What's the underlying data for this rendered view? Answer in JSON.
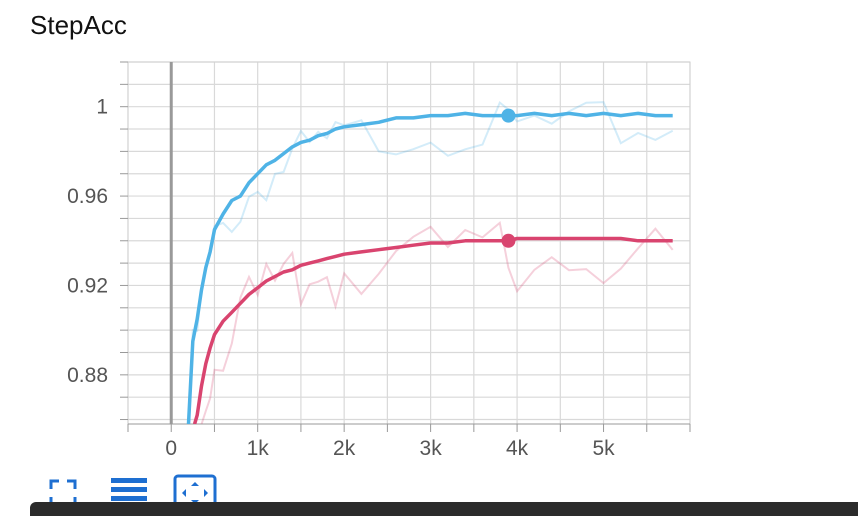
{
  "title": "StepAcc",
  "chart_data": {
    "type": "line",
    "title": "StepAcc",
    "xlabel": "",
    "ylabel": "",
    "xlim": [
      -500,
      6000
    ],
    "ylim": [
      0.858,
      1.02
    ],
    "x_ticks": [
      0,
      1000,
      2000,
      3000,
      4000,
      5000
    ],
    "x_tick_labels": [
      "0",
      "1k",
      "2k",
      "3k",
      "4k",
      "5k"
    ],
    "y_ticks": [
      0.88,
      0.92,
      0.96,
      1.0
    ],
    "y_tick_labels": [
      "0.88",
      "0.92",
      "0.96",
      "1"
    ],
    "grid": true,
    "series": [
      {
        "color": "#4fb3e6",
        "x": [
          200,
          250,
          300,
          350,
          400,
          450,
          500,
          600,
          700,
          800,
          900,
          1000,
          1100,
          1200,
          1300,
          1400,
          1500,
          1600,
          1700,
          1800,
          1900,
          2000,
          2200,
          2400,
          2600,
          2800,
          3000,
          3200,
          3400,
          3600,
          3800,
          3900,
          4000,
          4200,
          4400,
          4600,
          4800,
          5000,
          5200,
          5400,
          5600,
          5800
        ],
        "values": [
          0.858,
          0.895,
          0.905,
          0.918,
          0.928,
          0.935,
          0.945,
          0.952,
          0.958,
          0.96,
          0.966,
          0.97,
          0.974,
          0.976,
          0.979,
          0.982,
          0.984,
          0.985,
          0.987,
          0.988,
          0.99,
          0.991,
          0.992,
          0.993,
          0.995,
          0.995,
          0.996,
          0.996,
          0.997,
          0.996,
          0.996,
          0.996,
          0.996,
          0.997,
          0.996,
          0.997,
          0.996,
          0.997,
          0.996,
          0.997,
          0.996,
          0.996
        ]
      },
      {
        "color": "#d9446f",
        "x": [
          270,
          300,
          350,
          400,
          450,
          500,
          600,
          700,
          800,
          900,
          1000,
          1100,
          1200,
          1300,
          1400,
          1500,
          1600,
          1700,
          1800,
          1900,
          2000,
          2200,
          2400,
          2600,
          2800,
          3000,
          3200,
          3400,
          3600,
          3800,
          3900,
          4000,
          4200,
          4400,
          4600,
          4800,
          5000,
          5200,
          5400,
          5600,
          5800
        ],
        "values": [
          0.858,
          0.862,
          0.875,
          0.885,
          0.892,
          0.898,
          0.904,
          0.908,
          0.912,
          0.916,
          0.919,
          0.922,
          0.924,
          0.926,
          0.927,
          0.929,
          0.93,
          0.931,
          0.932,
          0.933,
          0.934,
          0.935,
          0.936,
          0.937,
          0.938,
          0.939,
          0.939,
          0.94,
          0.94,
          0.94,
          0.94,
          0.941,
          0.941,
          0.941,
          0.941,
          0.941,
          0.941,
          0.941,
          0.94,
          0.94,
          0.94
        ]
      }
    ]
  },
  "toolbar": {
    "fullscreen_icon": "fullscreen-icon",
    "legend_icon": "legend-list-icon",
    "fit_icon": "fit-domain-icon"
  }
}
